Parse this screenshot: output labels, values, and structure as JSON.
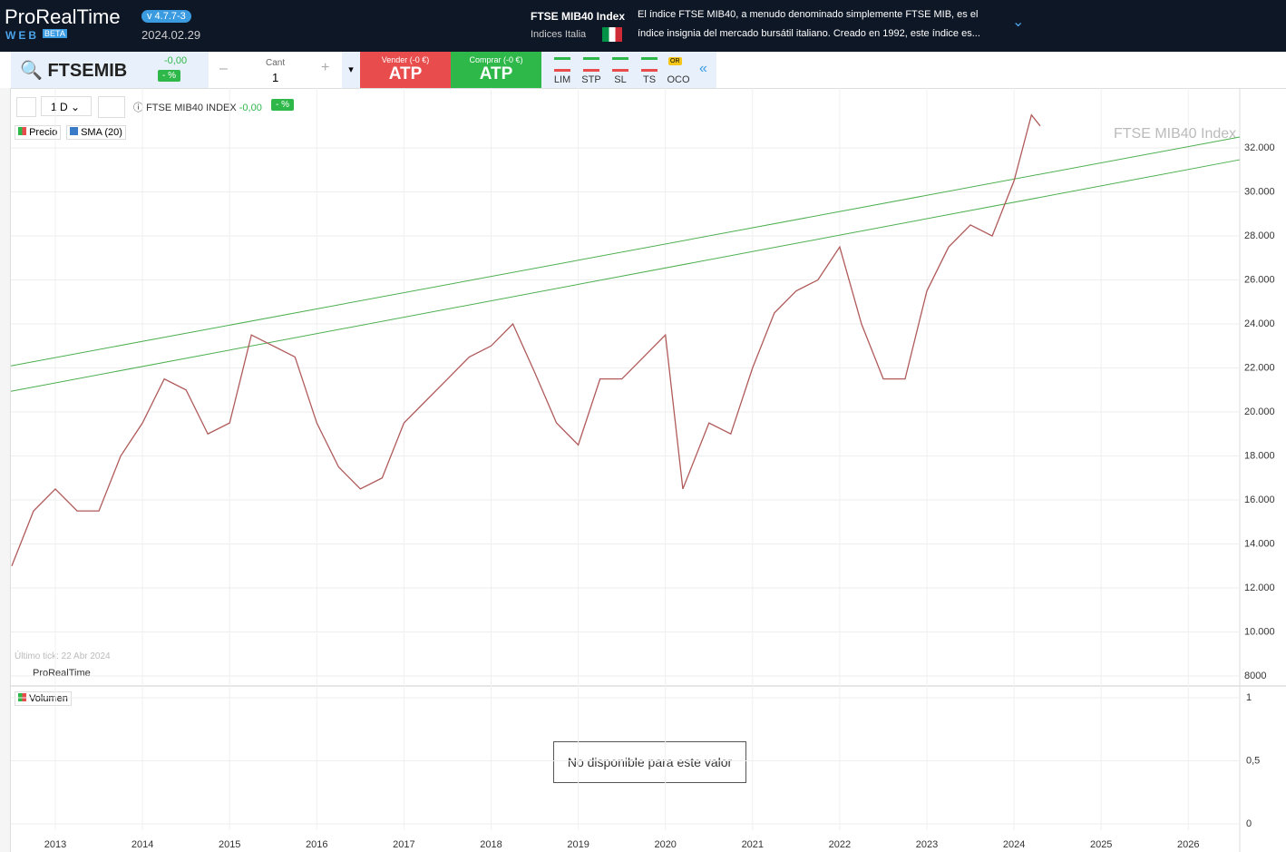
{
  "header": {
    "logo": "ProRealTime",
    "logo_sub": "WEB",
    "beta": "BETA",
    "version": "v 4.7.7-3",
    "date": "2024.02.29",
    "instrument": "FTSE MIB40 Index",
    "market": "Indices Italia",
    "description": [
      "El índice FTSE MIB40, a menudo denominado simplemente FTSE MIB, es el",
      "índice insignia del mercado bursátil italiano. Creado en 1992, este índice es..."
    ]
  },
  "toolbar": {
    "symbol": "FTSEMIB",
    "change": "-0,00",
    "change_pct": "- %",
    "qty_label": "Cant",
    "qty": "1",
    "sell_label": "Vender (-0 €)",
    "sell": "ATP",
    "buy_label": "Comprar (-0 €)",
    "buy": "ATP",
    "orders": [
      "LIM",
      "STP",
      "SL",
      "TS",
      "OCO"
    ],
    "oco_badge": "OR"
  },
  "chart_toolbar": {
    "timeframe": "1 D",
    "name": "FTSE MIB40 INDEX",
    "change": "-0,00",
    "change_pct": "- %",
    "legend": [
      "Precio",
      "SMA (20)"
    ],
    "watermark": "FTSE MIB40 Index",
    "last_tick": "Último tick: 22 Abr 2024",
    "brand": "ProRealTime"
  },
  "chart_data": {
    "type": "line",
    "color": "#b05a5a",
    "x": [
      2012.5,
      2012.75,
      2013.0,
      2013.25,
      2013.5,
      2013.75,
      2014.0,
      2014.25,
      2014.5,
      2014.75,
      2015.0,
      2015.25,
      2015.5,
      2015.75,
      2016.0,
      2016.25,
      2016.5,
      2016.75,
      2017.0,
      2017.25,
      2017.5,
      2017.75,
      2018.0,
      2018.25,
      2018.5,
      2018.75,
      2019.0,
      2019.25,
      2019.5,
      2019.75,
      2020.0,
      2020.2,
      2020.5,
      2020.75,
      2021.0,
      2021.25,
      2021.5,
      2021.75,
      2022.0,
      2022.25,
      2022.5,
      2022.75,
      2023.0,
      2023.25,
      2023.5,
      2023.75,
      2024.0,
      2024.2,
      2024.3
    ],
    "values": [
      13000,
      15500,
      16500,
      15500,
      15500,
      18000,
      19500,
      21500,
      21000,
      19000,
      19500,
      23500,
      23000,
      22500,
      19500,
      17500,
      16500,
      17000,
      19500,
      20500,
      21500,
      22500,
      23000,
      24000,
      21800,
      19500,
      18500,
      21500,
      21500,
      22500,
      23500,
      16500,
      19500,
      19000,
      22000,
      24500,
      25500,
      26000,
      27500,
      24000,
      21500,
      21500,
      25500,
      27500,
      28500,
      28000,
      30500,
      33500,
      33000
    ],
    "trendlines": [
      {
        "color": "#4caf50",
        "x": [
          2012.49,
          2026.59
        ],
        "values": [
          22095,
          32495
        ]
      },
      {
        "color": "#4caf50",
        "x": [
          2012.49,
          2026.59
        ],
        "values": [
          20940,
          31463
        ]
      }
    ],
    "xlim": [
      2012.49,
      2026.59
    ],
    "xticks": [
      2013,
      2014,
      2015,
      2016,
      2017,
      2018,
      2019,
      2020,
      2021,
      2022,
      2023,
      2024,
      2025,
      2026
    ],
    "ylim": [
      7587,
      34724
    ],
    "yticks": [
      {
        "value": 32000,
        "label": "32.000"
      },
      {
        "value": 30000,
        "label": "30.000"
      },
      {
        "value": 28000,
        "label": "28.000"
      },
      {
        "value": 26000,
        "label": "26.000"
      },
      {
        "value": 24000,
        "label": "24.000"
      },
      {
        "value": 22000,
        "label": "22.000"
      },
      {
        "value": 20000,
        "label": "20.000"
      },
      {
        "value": 18000,
        "label": "18.000"
      },
      {
        "value": 16000,
        "label": "16.000"
      },
      {
        "value": 14000,
        "label": "14.000"
      },
      {
        "value": 12000,
        "label": "12.000"
      },
      {
        "value": 10000,
        "label": "10.000"
      },
      8000
    ],
    "grid": true
  },
  "volume": {
    "legend": "Volumen",
    "message": "No disponible para este valor",
    "ylim": [
      -0.05,
      1.086
    ],
    "yticks": [
      1,
      {
        "value": 0.5,
        "label": "0,5"
      },
      0
    ]
  }
}
